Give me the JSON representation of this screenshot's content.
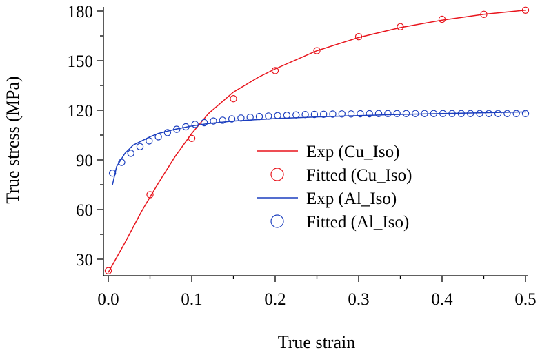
{
  "chart_data": {
    "type": "line",
    "xlabel": "True strain",
    "ylabel": "True stress (MPa)",
    "xlim": [
      0.0,
      0.5
    ],
    "ylim": [
      21,
      184
    ],
    "x_ticks": [
      "0.0",
      "0.1",
      "0.2",
      "0.3",
      "0.4",
      "0.5"
    ],
    "y_ticks": [
      "30",
      "60",
      "90",
      "120",
      "150",
      "180"
    ],
    "grid": false,
    "legend_position": "center-right",
    "series": [
      {
        "name": "Exp (Cu_Iso)",
        "style": "line",
        "color": "#e8141c",
        "x": [
          0.0,
          0.02,
          0.04,
          0.06,
          0.08,
          0.1,
          0.12,
          0.15,
          0.18,
          0.2,
          0.25,
          0.3,
          0.35,
          0.4,
          0.45,
          0.5
        ],
        "y": [
          22,
          40,
          59,
          76,
          92,
          106,
          118,
          131,
          140,
          145,
          156,
          164,
          170,
          174.5,
          178,
          180.5
        ]
      },
      {
        "name": "Fitted (Cu_Iso)",
        "style": "markers",
        "color": "#e8141c",
        "x": [
          0.0,
          0.05,
          0.1,
          0.15,
          0.2,
          0.25,
          0.3,
          0.35,
          0.4,
          0.45,
          0.5
        ],
        "y": [
          23,
          69,
          103,
          127,
          144,
          156,
          164.5,
          170.5,
          175,
          178,
          180.5
        ]
      },
      {
        "name": "Exp (Al_Iso)",
        "style": "line",
        "color": "#1c3fbf",
        "x": [
          0.005,
          0.01,
          0.02,
          0.03,
          0.04,
          0.05,
          0.06,
          0.08,
          0.1,
          0.12,
          0.15,
          0.2,
          0.25,
          0.3,
          0.35,
          0.4,
          0.45,
          0.5
        ],
        "y": [
          75,
          86,
          94,
          99,
          101.5,
          104,
          106,
          108.5,
          110.5,
          112,
          113.5,
          115,
          116,
          116.8,
          117.5,
          118,
          118.5,
          119
        ]
      },
      {
        "name": "Fitted (Al_Iso)",
        "style": "markers",
        "color": "#1c3fbf",
        "x": [
          0.005,
          0.016,
          0.027,
          0.038,
          0.049,
          0.06,
          0.071,
          0.082,
          0.093,
          0.104,
          0.115,
          0.126,
          0.137,
          0.148,
          0.159,
          0.17,
          0.181,
          0.192,
          0.203,
          0.214,
          0.225,
          0.236,
          0.247,
          0.258,
          0.269,
          0.28,
          0.291,
          0.302,
          0.313,
          0.324,
          0.335,
          0.346,
          0.357,
          0.368,
          0.379,
          0.39,
          0.401,
          0.412,
          0.423,
          0.434,
          0.445,
          0.456,
          0.467,
          0.478,
          0.489,
          0.5
        ],
        "y": [
          82,
          88.5,
          94,
          98,
          101.5,
          104,
          106.5,
          108.5,
          110,
          111.5,
          112.5,
          113.5,
          114,
          114.8,
          115.3,
          115.8,
          116.2,
          116.5,
          116.8,
          117,
          117.2,
          117.4,
          117.5,
          117.6,
          117.7,
          117.8,
          117.8,
          117.9,
          117.9,
          118,
          118,
          118,
          118,
          118,
          118,
          118,
          118,
          118,
          118,
          118,
          118,
          118,
          118,
          118,
          118,
          118
        ]
      }
    ]
  }
}
